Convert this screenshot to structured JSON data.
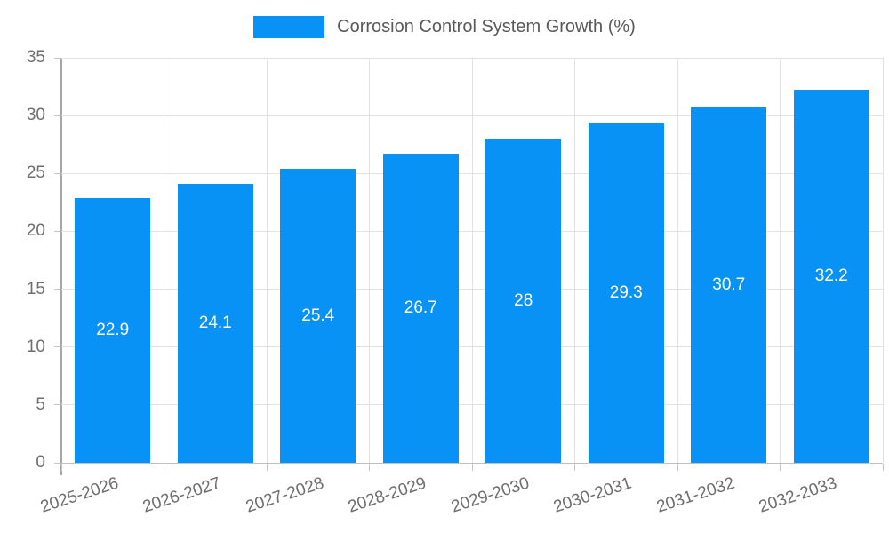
{
  "legend": {
    "label": "Corrosion Control System Growth (%)",
    "swatch_color": "#0892f5"
  },
  "chart_data": {
    "type": "bar",
    "title": "Corrosion Control System Growth (%)",
    "categories": [
      "2025-2026",
      "2026-2027",
      "2027-2028",
      "2028-2029",
      "2029-2030",
      "2030-2031",
      "2031-2032",
      "2032-2033"
    ],
    "values": [
      22.9,
      24.1,
      25.4,
      26.7,
      28,
      29.3,
      30.7,
      32.2
    ],
    "value_labels": [
      "22.9",
      "24.1",
      "25.4",
      "26.7",
      "28",
      "29.3",
      "30.7",
      "32.2"
    ],
    "xlabel": "",
    "ylabel": "",
    "ylim": [
      0,
      35
    ],
    "ytick_step": 5,
    "yticks": [
      "0",
      "5",
      "10",
      "15",
      "20",
      "25",
      "30",
      "35"
    ],
    "grid": true,
    "legend_position": "top-center",
    "bar_color": "#0892f5",
    "bar_label_color": "#ffffff",
    "axis_text_color": "#6e6e6e",
    "grid_color": "#e2e2e2",
    "xtick_rotation_deg": -18
  }
}
